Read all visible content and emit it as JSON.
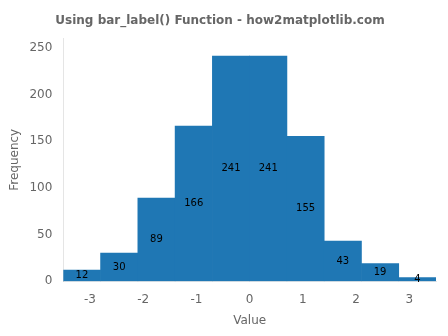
{
  "chart_data": {
    "type": "histogram",
    "title": "Using bar_label() Function - how2matplotlib.com",
    "xlabel": "Value",
    "ylabel": "Frequency",
    "bins": [
      -3.5,
      -2.8,
      -2.1,
      -1.4,
      -0.7,
      0,
      0.7,
      1.4,
      2.1,
      2.8,
      3.5
    ],
    "values": [
      12,
      30,
      89,
      166,
      241,
      241,
      155,
      43,
      19,
      4
    ],
    "color": "#1f77b4",
    "xlim": [
      -3.5,
      3.5
    ],
    "ylim": [
      0,
      260
    ],
    "xticks": [
      -3,
      -2,
      -1,
      0,
      1,
      2,
      3
    ],
    "yticks": [
      0,
      50,
      100,
      150,
      200,
      250
    ],
    "data_labels": true,
    "grid": false
  }
}
